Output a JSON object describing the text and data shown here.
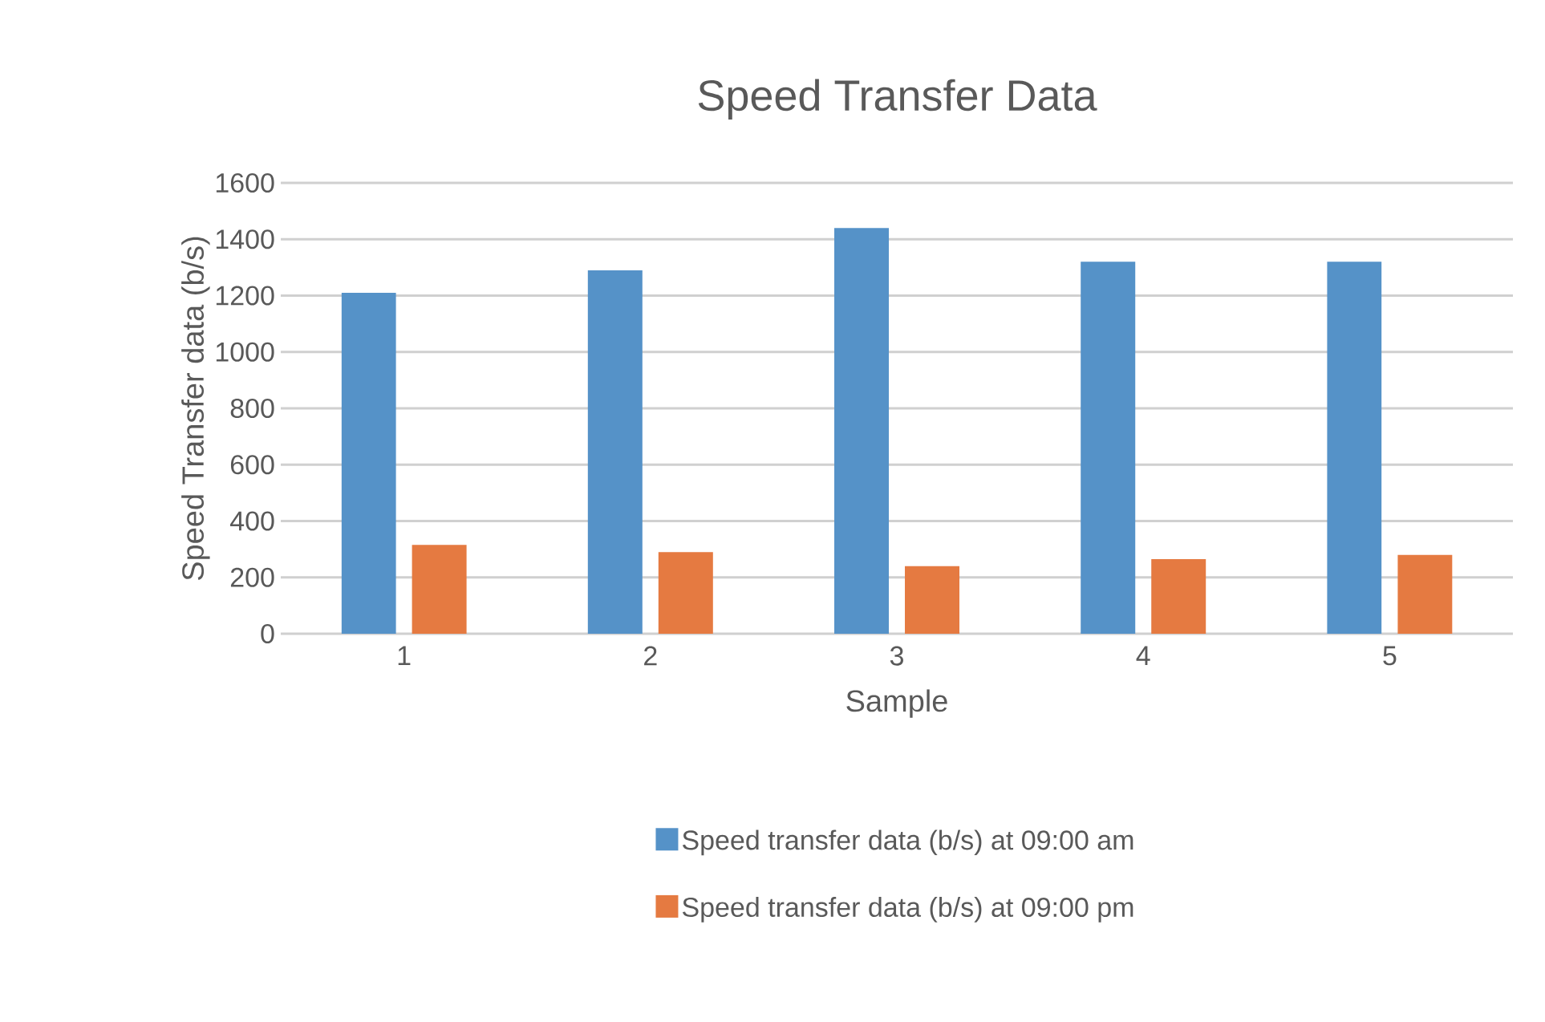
{
  "chart_data": {
    "type": "bar",
    "title": "Speed Transfer Data",
    "xlabel": "Sample",
    "ylabel": "Speed Transfer data (b/s)",
    "categories": [
      "1",
      "2",
      "3",
      "4",
      "5"
    ],
    "series": [
      {
        "name": "Speed transfer data (b/s) at 09:00 am",
        "color": "#5592c8",
        "values": [
          1210,
          1290,
          1440,
          1320,
          1320
        ]
      },
      {
        "name": "Speed transfer data (b/s) at 09:00 pm",
        "color": "#e57a41",
        "values": [
          315,
          290,
          240,
          265,
          280
        ]
      }
    ],
    "ylim": [
      0,
      1600
    ],
    "yticks": [
      0,
      200,
      400,
      600,
      800,
      1000,
      1200,
      1400,
      1600
    ],
    "grid": "y",
    "legend": "bottom"
  }
}
